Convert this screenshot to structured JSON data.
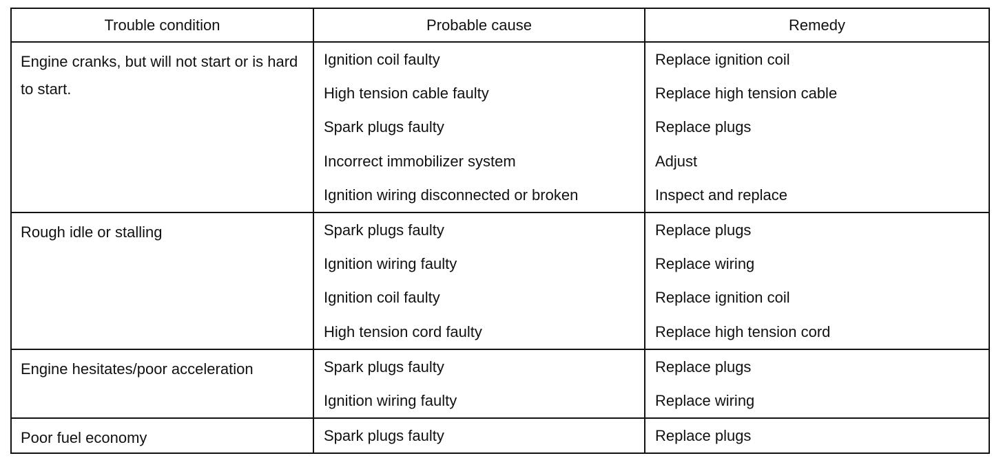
{
  "header": {
    "condition": "Trouble condition",
    "cause": "Probable cause",
    "remedy": "Remedy"
  },
  "groups": [
    {
      "condition": "Engine cranks, but will not start or is hard to start.",
      "items": [
        {
          "cause": "Ignition coil faulty",
          "remedy": "Replace ignition coil"
        },
        {
          "cause": "High tension cable faulty",
          "remedy": "Replace high tension cable"
        },
        {
          "cause": "Spark plugs faulty",
          "remedy": "Replace plugs"
        },
        {
          "cause": "Incorrect immobilizer system",
          "remedy": "Adjust"
        },
        {
          "cause": "Ignition wiring disconnected or broken",
          "remedy": "Inspect and replace"
        }
      ]
    },
    {
      "condition": "Rough idle or stalling",
      "items": [
        {
          "cause": "Spark plugs faulty",
          "remedy": "Replace plugs"
        },
        {
          "cause": "Ignition wiring faulty",
          "remedy": "Replace wiring"
        },
        {
          "cause": "Ignition coil faulty",
          "remedy": "Replace ignition coil"
        },
        {
          "cause": "High tension cord faulty",
          "remedy": "Replace high tension cord"
        }
      ]
    },
    {
      "condition": "Engine hesitates/poor acceleration",
      "items": [
        {
          "cause": "Spark plugs faulty",
          "remedy": "Replace plugs"
        },
        {
          "cause": "Ignition wiring faulty",
          "remedy": "Replace wiring"
        }
      ]
    },
    {
      "condition": "Poor fuel economy",
      "items": [
        {
          "cause": "Spark plugs faulty",
          "remedy": "Replace plugs"
        }
      ]
    }
  ]
}
